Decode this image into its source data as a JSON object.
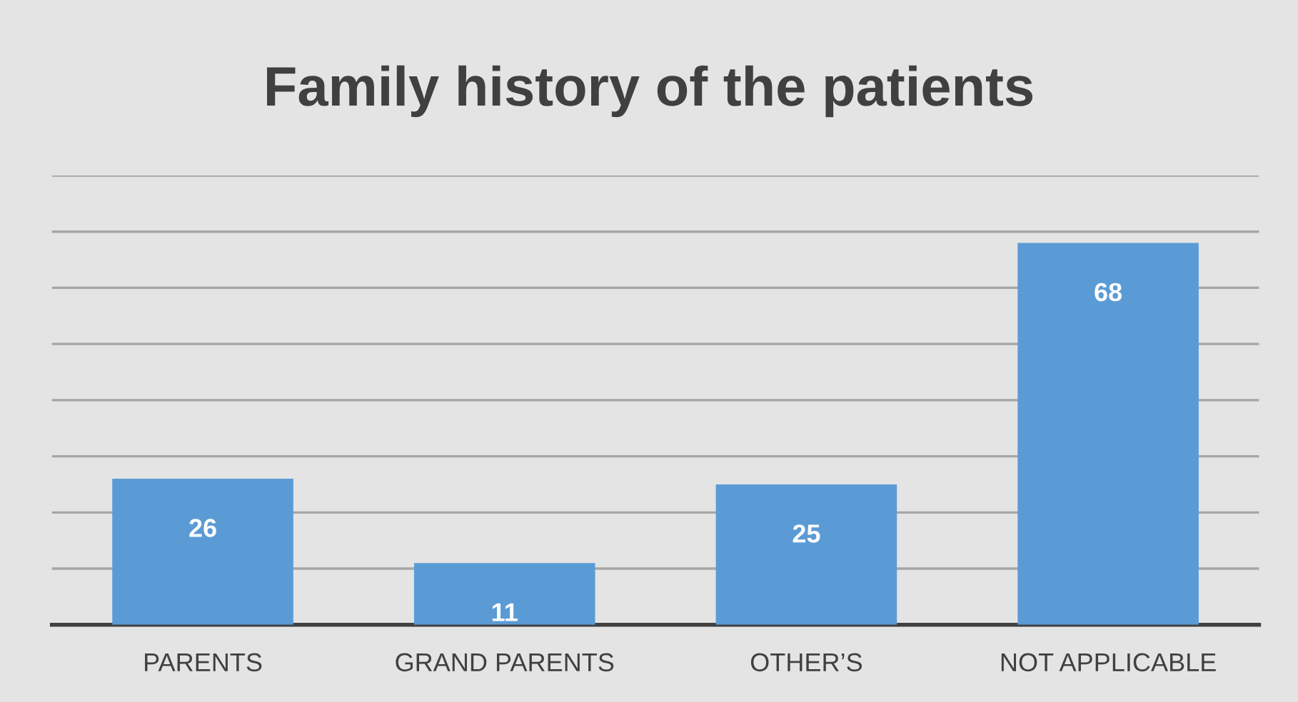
{
  "chart_data": {
    "type": "bar",
    "title": "Family history of the patients",
    "categories": [
      "PARENTS",
      "GRAND PARENTS",
      "OTHER’S",
      "NOT APPLICABLE"
    ],
    "values": [
      26,
      11,
      25,
      68
    ],
    "color": "#5b9bd5",
    "ylim": [
      0,
      80
    ],
    "yticks": [
      {
        "value": 0,
        "label": null
      },
      {
        "value": 10,
        "label": null
      },
      {
        "value": 20,
        "label": null
      },
      {
        "value": 30,
        "label": null
      },
      {
        "value": 40,
        "label": null
      },
      {
        "value": 50,
        "label": null
      },
      {
        "value": 60,
        "label": null
      },
      {
        "value": 70,
        "label": null
      },
      {
        "value": 80,
        "label": null
      }
    ],
    "grid": "y",
    "data_labels": true,
    "tick_labels": "x"
  }
}
